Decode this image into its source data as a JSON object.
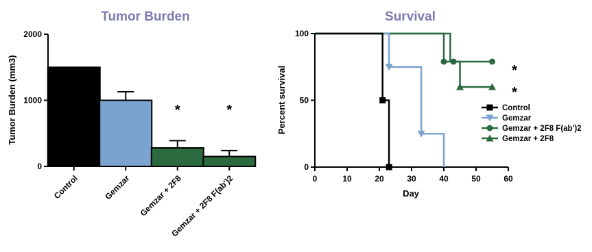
{
  "chart_data": [
    {
      "type": "bar",
      "title": "Tumor Burden",
      "xlabel": "",
      "ylabel": "Tumor Burden (mm3)",
      "ylim": [
        0,
        2000
      ],
      "yticks": [
        0,
        1000,
        2000
      ],
      "categories": [
        "Control",
        "Gemzar",
        "Gemzar + 2F8",
        "Gemzar + 2F8 F(ab')2"
      ],
      "values": [
        1500,
        1000,
        280,
        150
      ],
      "errors": [
        0,
        130,
        110,
        90
      ],
      "bar_colors": [
        "#000000",
        "#7ba3d0",
        "#2a6a3e",
        "#2a6a3e"
      ],
      "annotations": [
        "",
        "",
        "*",
        "*"
      ],
      "grid": false
    },
    {
      "type": "line",
      "title": "Survival",
      "xlabel": "Day",
      "ylabel": "Percent survival",
      "xlim": [
        0,
        60
      ],
      "ylim": [
        0,
        100
      ],
      "xticks": [
        0,
        10,
        20,
        30,
        40,
        50,
        60
      ],
      "yticks": [
        0,
        50,
        100
      ],
      "grid": false,
      "legend_position": "right",
      "series": [
        {
          "name": "Control",
          "color": "#000000",
          "marker": "square",
          "steps": [
            [
              0,
              100
            ],
            [
              21,
              100
            ],
            [
              21,
              50
            ],
            [
              23,
              50
            ],
            [
              23,
              0
            ]
          ],
          "points": [
            [
              21,
              50
            ],
            [
              23,
              0
            ]
          ]
        },
        {
          "name": "Gemzar",
          "color": "#7ba3d0",
          "marker": "triangle-down",
          "steps": [
            [
              0,
              100
            ],
            [
              23,
              100
            ],
            [
              23,
              75
            ],
            [
              33,
              75
            ],
            [
              33,
              25
            ],
            [
              40,
              25
            ],
            [
              40,
              0
            ]
          ],
          "points": [
            [
              23,
              75
            ],
            [
              33,
              25
            ]
          ]
        },
        {
          "name": "Gemzar + 2F8 F(ab')2",
          "color": "#2a6a3e",
          "marker": "circle",
          "steps": [
            [
              0,
              100
            ],
            [
              40,
              100
            ],
            [
              40,
              79
            ],
            [
              55,
              79
            ]
          ],
          "points": [
            [
              40,
              79
            ],
            [
              43,
              79
            ],
            [
              55,
              79
            ]
          ]
        },
        {
          "name": "Gemzar + 2F8",
          "color": "#2a6a3e",
          "marker": "triangle-up",
          "steps": [
            [
              0,
              100
            ],
            [
              42,
              100
            ],
            [
              42,
              79
            ],
            [
              45,
              79
            ],
            [
              45,
              60
            ],
            [
              55,
              60
            ]
          ],
          "points": [
            [
              45,
              60
            ],
            [
              55,
              60
            ]
          ]
        }
      ],
      "annotations": [
        {
          "text": "*",
          "near_series": "Gemzar + 2F8 F(ab')2"
        },
        {
          "text": "*",
          "near_series": "Gemzar + 2F8"
        }
      ]
    }
  ]
}
